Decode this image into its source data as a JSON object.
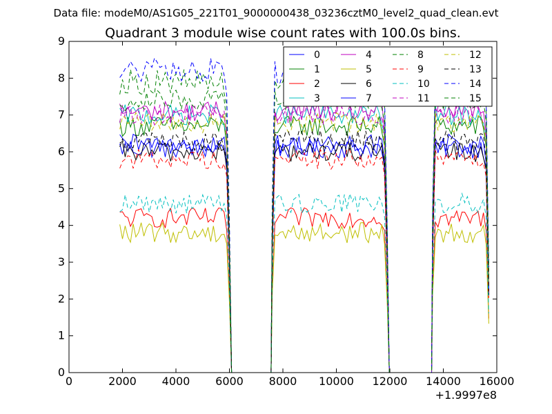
{
  "header": {
    "data_file": "Data file: modeM0/AS1G05_221T01_9000000438_03236cztM0_level2_quad_clean.evt"
  },
  "chart_data": {
    "type": "line",
    "title": "Quadrant 3 module wise count rates with 100.0s bins.",
    "xlabel": "",
    "ylabel": "",
    "xlim": [
      0,
      16000
    ],
    "ylim": [
      0,
      9
    ],
    "x_offset_label": "+1.9997e8",
    "xticks": [
      0,
      2000,
      4000,
      6000,
      8000,
      10000,
      12000,
      14000,
      16000
    ],
    "xtick_labels": [
      "0",
      "2000",
      "4000",
      "6000",
      "8000",
      "10000",
      "12000",
      "14000",
      "16000"
    ],
    "yticks": [
      0,
      1,
      2,
      3,
      4,
      5,
      6,
      7,
      8,
      9
    ],
    "ytick_labels": [
      "0",
      "1",
      "2",
      "3",
      "4",
      "5",
      "6",
      "7",
      "8",
      "9"
    ],
    "grid": false,
    "legend": {
      "placement": "top-right",
      "columns": 4
    },
    "segments": [
      [
        1900,
        6000
      ],
      [
        7600,
        11900
      ],
      [
        13600,
        15700
      ]
    ],
    "gap_value": 0,
    "series": [
      {
        "name": "0",
        "color": "#0000ff",
        "style": "solid",
        "level": 6.1
      },
      {
        "name": "1",
        "color": "#008000",
        "style": "solid",
        "level": 6.7
      },
      {
        "name": "2",
        "color": "#ff0000",
        "style": "solid",
        "level": 4.2
      },
      {
        "name": "3",
        "color": "#00bfbf",
        "style": "solid",
        "level": 7.0
      },
      {
        "name": "4",
        "color": "#bf00bf",
        "style": "solid",
        "level": 7.1
      },
      {
        "name": "5",
        "color": "#bfbf00",
        "style": "solid",
        "level": 3.8
      },
      {
        "name": "6",
        "color": "#000000",
        "style": "solid",
        "level": 6.0
      },
      {
        "name": "7",
        "color": "#0000ff",
        "style": "solid",
        "level": 6.2
      },
      {
        "name": "8",
        "color": "#008000",
        "style": "dashed",
        "level": 7.9
      },
      {
        "name": "9",
        "color": "#ff0000",
        "style": "dashed",
        "level": 5.8
      },
      {
        "name": "10",
        "color": "#00bfbf",
        "style": "dashed",
        "level": 4.6
      },
      {
        "name": "11",
        "color": "#bf00bf",
        "style": "dashed",
        "level": 7.0
      },
      {
        "name": "12",
        "color": "#bfbf00",
        "style": "dashed",
        "level": 6.8
      },
      {
        "name": "13",
        "color": "#000000",
        "style": "dashed",
        "level": 6.3
      },
      {
        "name": "14",
        "color": "#0000ff",
        "style": "dashed",
        "level": 8.2
      },
      {
        "name": "15",
        "color": "#008000",
        "style": "dashed",
        "level": 7.4
      }
    ]
  }
}
